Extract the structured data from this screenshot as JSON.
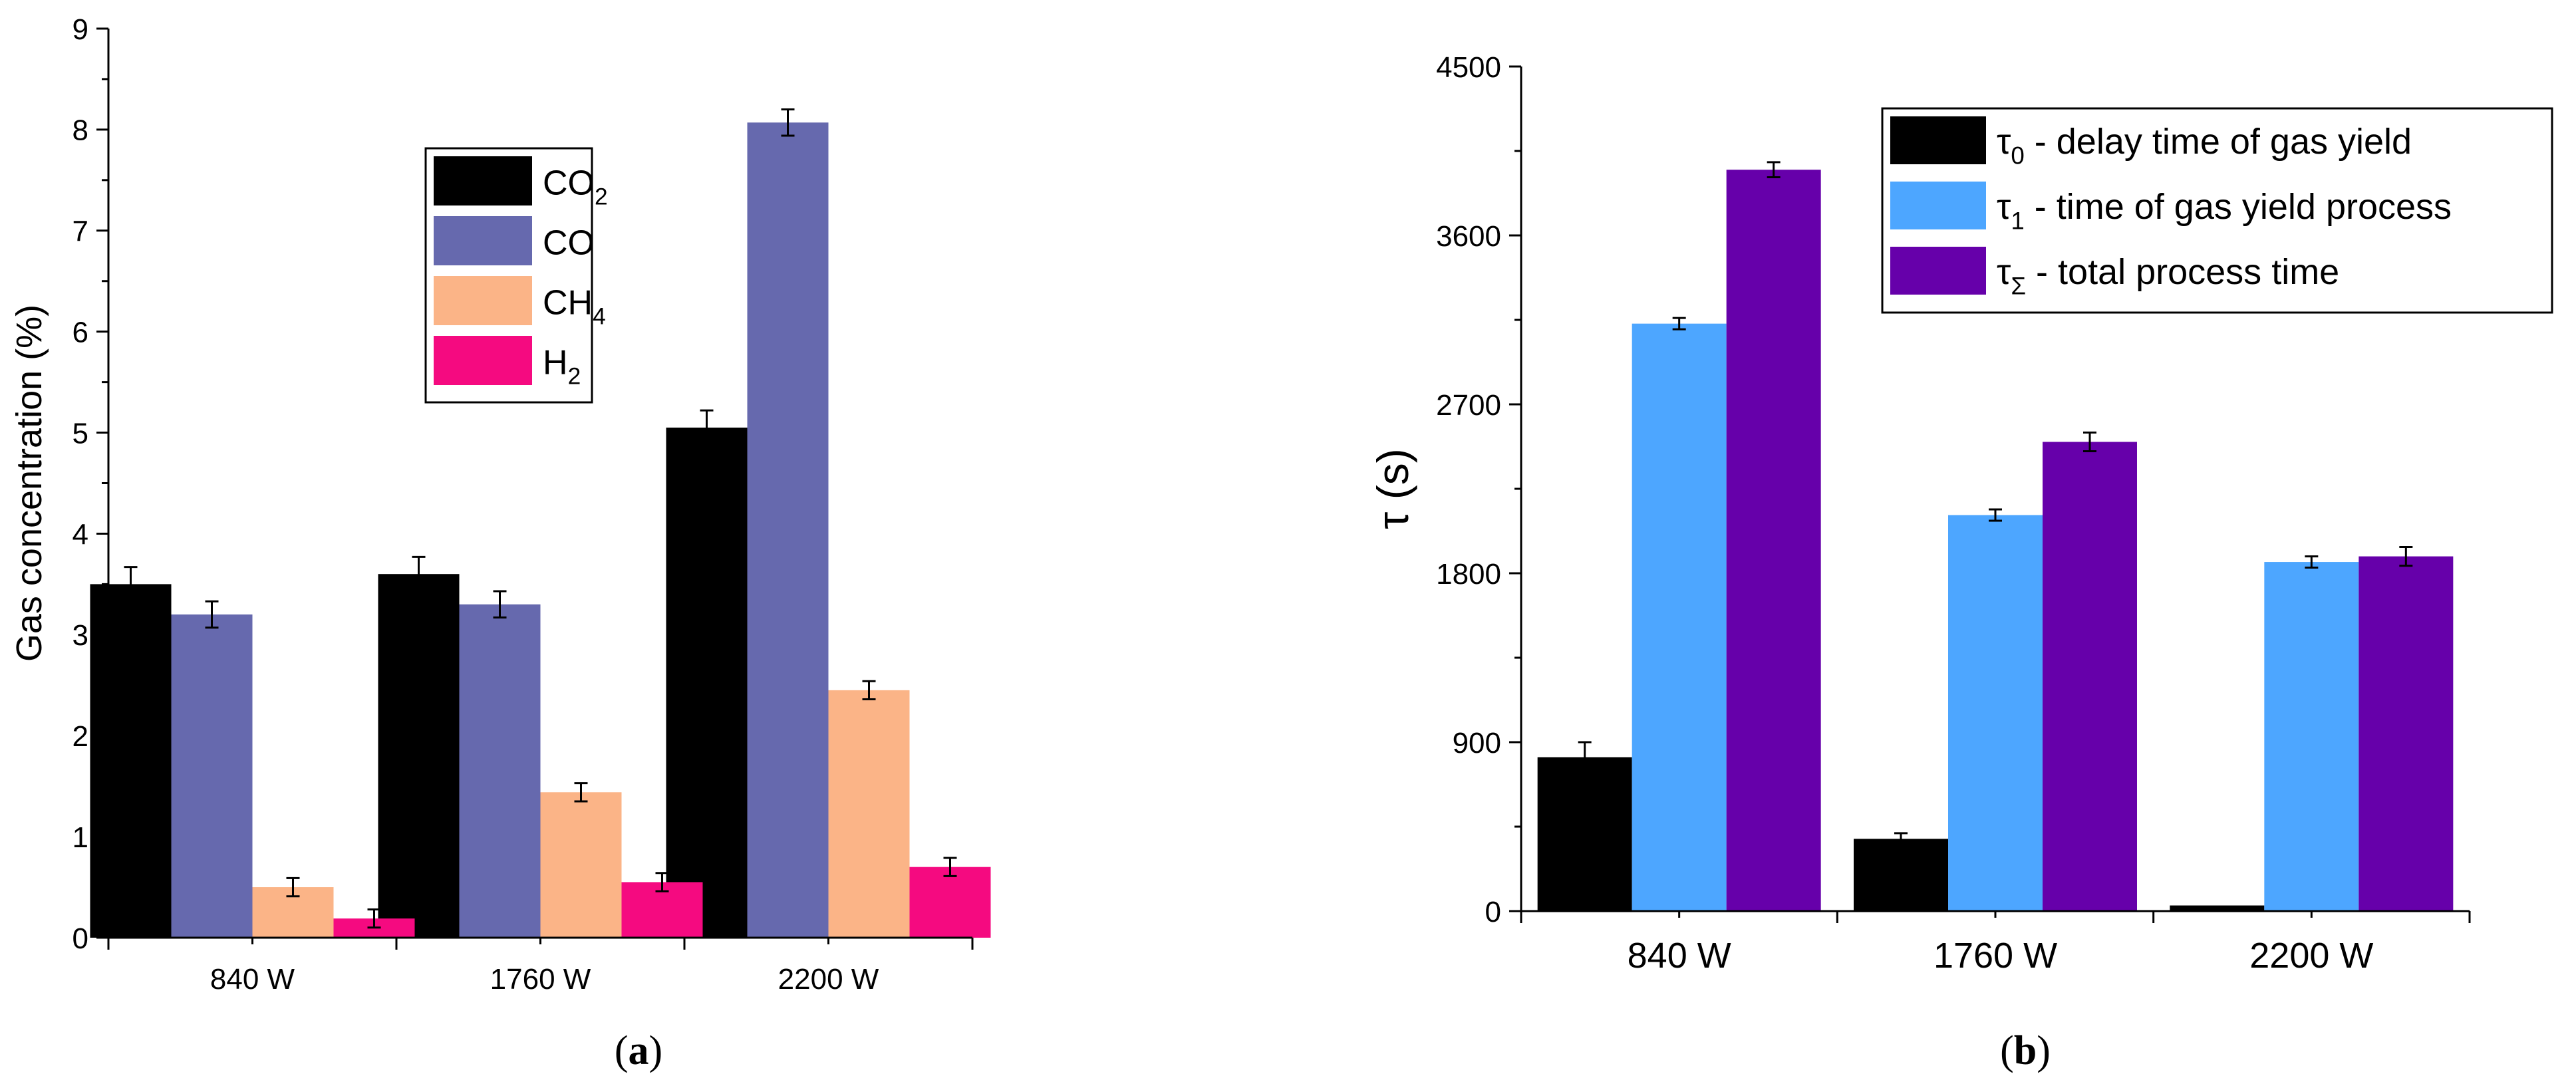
{
  "chart_data": [
    {
      "type": "bar",
      "panel_label": "a",
      "title": "",
      "xlabel": "",
      "ylabel": "Gas concentration (%)",
      "categories": [
        "840 W",
        "1760 W",
        "2200 W"
      ],
      "ylim": [
        0,
        9
      ],
      "yticks": [
        0,
        1,
        2,
        3,
        4,
        5,
        6,
        7,
        8,
        9
      ],
      "grid": false,
      "legend_position": "top-center",
      "series": [
        {
          "name": "CO",
          "sub": "2",
          "color": "#000000",
          "values": [
            3.5,
            3.6,
            5.05
          ],
          "errors": [
            0.17,
            0.17,
            0.17
          ]
        },
        {
          "name": "CO",
          "sub": "",
          "color": "#6669ae",
          "values": [
            3.2,
            3.3,
            8.07
          ],
          "errors": [
            0.13,
            0.13,
            0.13
          ]
        },
        {
          "name": "CH",
          "sub": "4",
          "color": "#fbb487",
          "values": [
            0.5,
            1.44,
            2.45
          ],
          "errors": [
            0.09,
            0.09,
            0.09
          ]
        },
        {
          "name": "H",
          "sub": "2",
          "color": "#f50a80",
          "values": [
            0.19,
            0.55,
            0.7
          ],
          "errors": [
            0.09,
            0.09,
            0.09
          ]
        }
      ]
    },
    {
      "type": "bar",
      "panel_label": "b",
      "title": "",
      "xlabel": "",
      "ylabel": "τ (s)",
      "categories": [
        "840 W",
        "1760 W",
        "2200 W"
      ],
      "ylim": [
        0,
        4500
      ],
      "yticks": [
        0,
        900,
        1800,
        2700,
        3600,
        4500
      ],
      "grid": false,
      "legend_position": "top-right",
      "series": [
        {
          "name": "τ",
          "sub": "0",
          "desc": " - delay time of gas yield",
          "color": "#000000",
          "values": [
            820,
            385,
            30
          ],
          "errors": [
            80,
            30,
            0
          ]
        },
        {
          "name": "τ",
          "sub": "1",
          "desc": " - time of gas yield process",
          "color": "#4da6ff",
          "values": [
            3130,
            2110,
            1860
          ],
          "errors": [
            30,
            30,
            30
          ]
        },
        {
          "name": "τ",
          "sub": "Σ",
          "desc": " - total process time",
          "color": "#6600aa",
          "values": [
            3950,
            2500,
            1890
          ],
          "errors": [
            40,
            50,
            50
          ]
        }
      ]
    }
  ]
}
